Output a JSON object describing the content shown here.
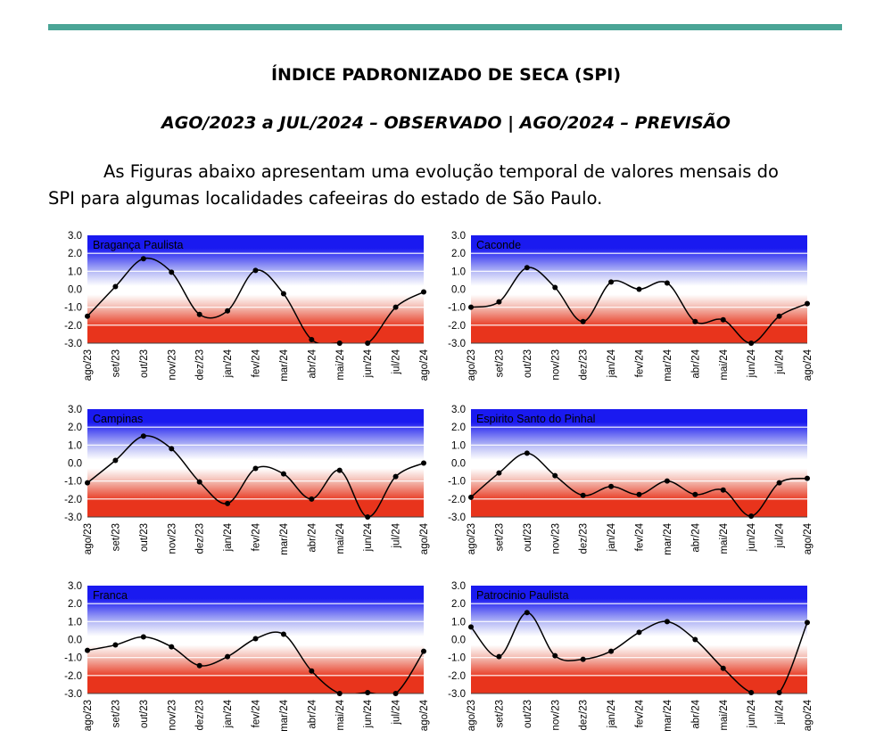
{
  "header": {
    "title": "ÍNDICE PADRONIZADO DE SECA (SPI)",
    "subtitle": "AGO/2023 a JUL/2024 – OBSERVADO | AGO/2024 – PREVISÃO",
    "paragraph_line1": "As Figuras abaixo apresentam uma evolução temporal de valores mensais do",
    "paragraph_line2": "SPI para algumas localidades cafeeiras do estado de São Paulo."
  },
  "colors": {
    "rule": "#4aa596",
    "wet": "#1a1af0",
    "dry": "#e8341c",
    "neutral": "#ffffff",
    "line": "#000000"
  },
  "chart_data": [
    {
      "type": "line",
      "title": "Bragança Paulista",
      "categories": [
        "ago/23",
        "set/23",
        "out/23",
        "nov/23",
        "dez/23",
        "jan/24",
        "fev/24",
        "mar/24",
        "abr/24",
        "mai/24",
        "jun/24",
        "jul/24",
        "ago/24"
      ],
      "values": [
        -1.5,
        0.15,
        1.7,
        0.95,
        -1.4,
        -1.2,
        1.05,
        -0.25,
        -2.8,
        -3.0,
        -3.0,
        -1.0,
        -0.15
      ],
      "ylim": [
        -3.0,
        3.0
      ],
      "yticks": [
        "3.0",
        "2.0",
        "1.0",
        "0.0",
        "-1.0",
        "-2.0",
        "-3.0"
      ],
      "grid": true
    },
    {
      "type": "line",
      "title": "Caconde",
      "categories": [
        "ago/23",
        "set/23",
        "out/23",
        "nov/23",
        "dez/23",
        "jan/24",
        "fev/24",
        "mar/24",
        "abr/24",
        "mai/24",
        "jun/24",
        "jul/24",
        "ago/24"
      ],
      "values": [
        -1.0,
        -0.7,
        1.2,
        0.1,
        -1.8,
        0.4,
        0.0,
        0.35,
        -1.8,
        -1.7,
        -3.0,
        -1.5,
        -0.8
      ],
      "ylim": [
        -3.0,
        3.0
      ],
      "yticks": [
        "3.0",
        "2.0",
        "1.0",
        "0.0",
        "-1.0",
        "-2.0",
        "-3.0"
      ],
      "grid": true
    },
    {
      "type": "line",
      "title": "Campinas",
      "categories": [
        "ago/23",
        "set/23",
        "out/23",
        "nov/23",
        "dez/23",
        "jan/24",
        "fev/24",
        "mar/24",
        "abr/24",
        "mai/24",
        "jun/24",
        "jul/24",
        "ago/24"
      ],
      "values": [
        -1.1,
        0.15,
        1.5,
        0.8,
        -1.05,
        -2.25,
        -0.3,
        -0.6,
        -2.0,
        -0.4,
        -3.0,
        -0.75,
        0.0
      ],
      "ylim": [
        -3.0,
        3.0
      ],
      "yticks": [
        "3.0",
        "2.0",
        "1.0",
        "0.0",
        "-1.0",
        "-2.0",
        "-3.0"
      ],
      "grid": true
    },
    {
      "type": "line",
      "title": "Espirito Santo do Pinhal",
      "categories": [
        "ago/23",
        "set/23",
        "out/23",
        "nov/23",
        "dez/23",
        "jan/24",
        "fev/24",
        "mar/24",
        "abr/24",
        "mai/24",
        "jun/24",
        "jul/24",
        "ago/24"
      ],
      "values": [
        -1.9,
        -0.55,
        0.55,
        -0.7,
        -1.8,
        -1.3,
        -1.75,
        -1.0,
        -1.75,
        -1.5,
        -2.95,
        -1.1,
        -0.85
      ],
      "ylim": [
        -3.0,
        3.0
      ],
      "yticks": [
        "3.0",
        "2.0",
        "1.0",
        "0.0",
        "-1.0",
        "-2.0",
        "-3.0"
      ],
      "grid": true
    },
    {
      "type": "line",
      "title": "Franca",
      "categories": [
        "ago/23",
        "set/23",
        "out/23",
        "nov/23",
        "dez/23",
        "jan/24",
        "fev/24",
        "mar/24",
        "abr/24",
        "mai/24",
        "jun/24",
        "jul/24",
        "ago/24"
      ],
      "values": [
        -0.6,
        -0.3,
        0.15,
        -0.4,
        -1.45,
        -0.95,
        0.05,
        0.3,
        -1.75,
        -3.0,
        -2.95,
        -3.0,
        -0.65
      ],
      "ylim": [
        -3.0,
        3.0
      ],
      "yticks": [
        "3.0",
        "2.0",
        "1.0",
        "0.0",
        "-1.0",
        "-2.0",
        "-3.0"
      ],
      "grid": true
    },
    {
      "type": "line",
      "title": "Patrocinio Paulista",
      "categories": [
        "ago/23",
        "set/23",
        "out/23",
        "nov/23",
        "dez/23",
        "jan/24",
        "fev/24",
        "mar/24",
        "abr/24",
        "mai/24",
        "jun/24",
        "jul/24",
        "ago/24"
      ],
      "values": [
        0.7,
        -0.95,
        1.5,
        -0.9,
        -1.1,
        -0.65,
        0.4,
        1.0,
        0.0,
        -1.6,
        -2.95,
        -2.95,
        0.95
      ],
      "ylim": [
        -3.0,
        3.0
      ],
      "yticks": [
        "3.0",
        "2.0",
        "1.0",
        "0.0",
        "-1.0",
        "-2.0",
        "-3.0"
      ],
      "grid": true
    }
  ]
}
